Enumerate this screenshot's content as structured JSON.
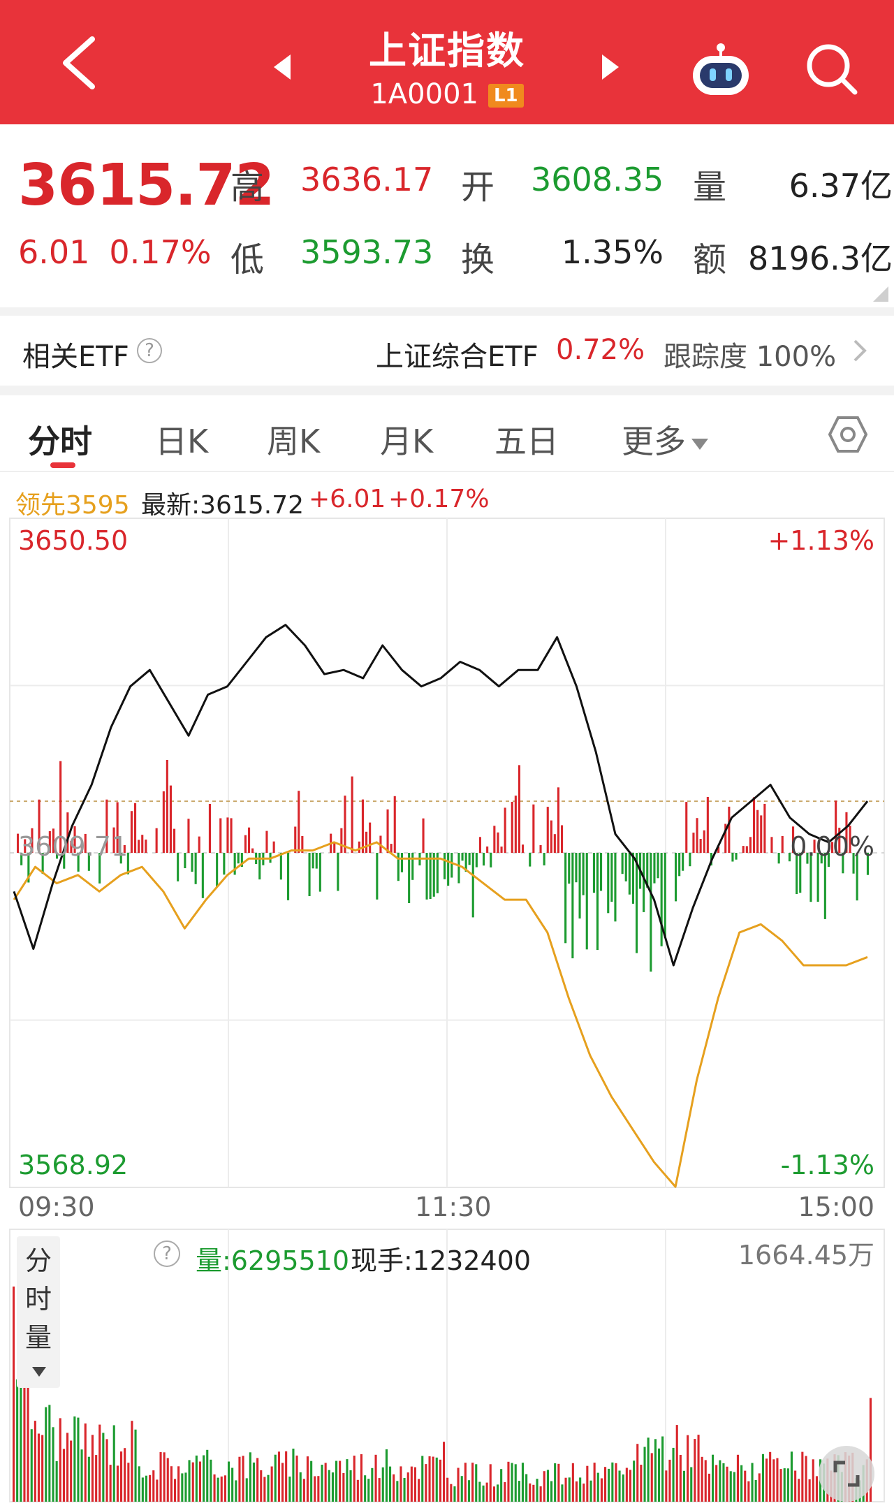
{
  "header": {
    "title": "上证指数",
    "code": "1A0001",
    "level_badge": "L1",
    "bg_color": "#e8333a"
  },
  "quote": {
    "price": "3615.72",
    "change": "6.01",
    "change_pct": "0.17%",
    "high_label": "高",
    "high": "3636.17",
    "open_label": "开",
    "open": "3608.35",
    "volume_label": "量",
    "volume": "6.37亿",
    "low_label": "低",
    "low": "3593.73",
    "turnover_label": "换",
    "turnover": "1.35%",
    "amount_label": "额",
    "amount": "8196.3亿"
  },
  "etf": {
    "label": "相关ETF",
    "help_icon": "?",
    "name": "上证综合ETF",
    "change_pct": "0.72%",
    "tracking_label": "跟踪度",
    "tracking": "100%"
  },
  "tabs": [
    "分时",
    "日K",
    "周K",
    "月K",
    "五日",
    "更多"
  ],
  "info": {
    "leader": "领先3595",
    "latest": "最新:3615.72",
    "change": "+6.01",
    "change_pct": "+0.17%"
  },
  "price_axis": {
    "top": "3650.50",
    "mid": "0.00%",
    "mid_price_partial": "3609.71",
    "bottom": "3568.92",
    "top_pct": "+1.13%",
    "bottom_pct": "-1.13%"
  },
  "time_axis": [
    "09:30",
    "11:30",
    "15:00"
  ],
  "volume_panel": {
    "selector": "分时量",
    "help_icon": "?",
    "volume": "量:6295510",
    "current_hand": "现手:1232400",
    "max": "1664.45万"
  },
  "colors": {
    "up": "#d9262b",
    "down": "#1c9b30",
    "price_line": "#111111",
    "avg_line": "#e6a01e"
  },
  "chart_data": {
    "type": "line",
    "xlabel": "",
    "ylabel": "",
    "x_range": [
      "09:30",
      "15:00"
    ],
    "ylim": [
      3568.92,
      3650.5
    ],
    "prev_close": 3609.71,
    "series": [
      {
        "values": [
          3605.0,
          3598.0,
          3606.0,
          3613.0,
          3618.0,
          3625.0,
          3630.0,
          3632.0,
          3628.0,
          3624.0,
          3629.0,
          3630.0,
          3633.0,
          3636.0,
          3637.5,
          3635.0,
          3631.5,
          3632.0,
          3631.0,
          3635.0,
          3632.0,
          3630.0,
          3631.0,
          3633.0,
          3632.0,
          3630.0,
          3632.0,
          3632.0,
          3636.0,
          3630.0,
          3622.0,
          3612.0,
          3609.0,
          3604.0,
          3596.0,
          3603.0,
          3609.0,
          3614.0,
          3616.0,
          3618.0,
          3614.0,
          3612.0,
          3611.0,
          3613.0,
          3616.0
        ]
      },
      {
        "values": [
          3604.0,
          3608.0,
          3606.0,
          3607.0,
          3605.0,
          3607.0,
          3608.0,
          3605.0,
          3600.5,
          3604.0,
          3607.0,
          3609.0,
          3609.0,
          3610.0,
          3610.0,
          3611.0,
          3610.0,
          3611.0,
          3609.0,
          3609.0,
          3609.0,
          3608.0,
          3606.0,
          3604.0,
          3604.0,
          3600.0,
          3592.0,
          3585.0,
          3580.0,
          3576.0,
          3572.0,
          3569.0,
          3582.0,
          3592.0,
          3600.0,
          3601.0,
          3599.0,
          3596.0,
          3596.0,
          3596.0,
          3597.0
        ]
      }
    ]
  }
}
